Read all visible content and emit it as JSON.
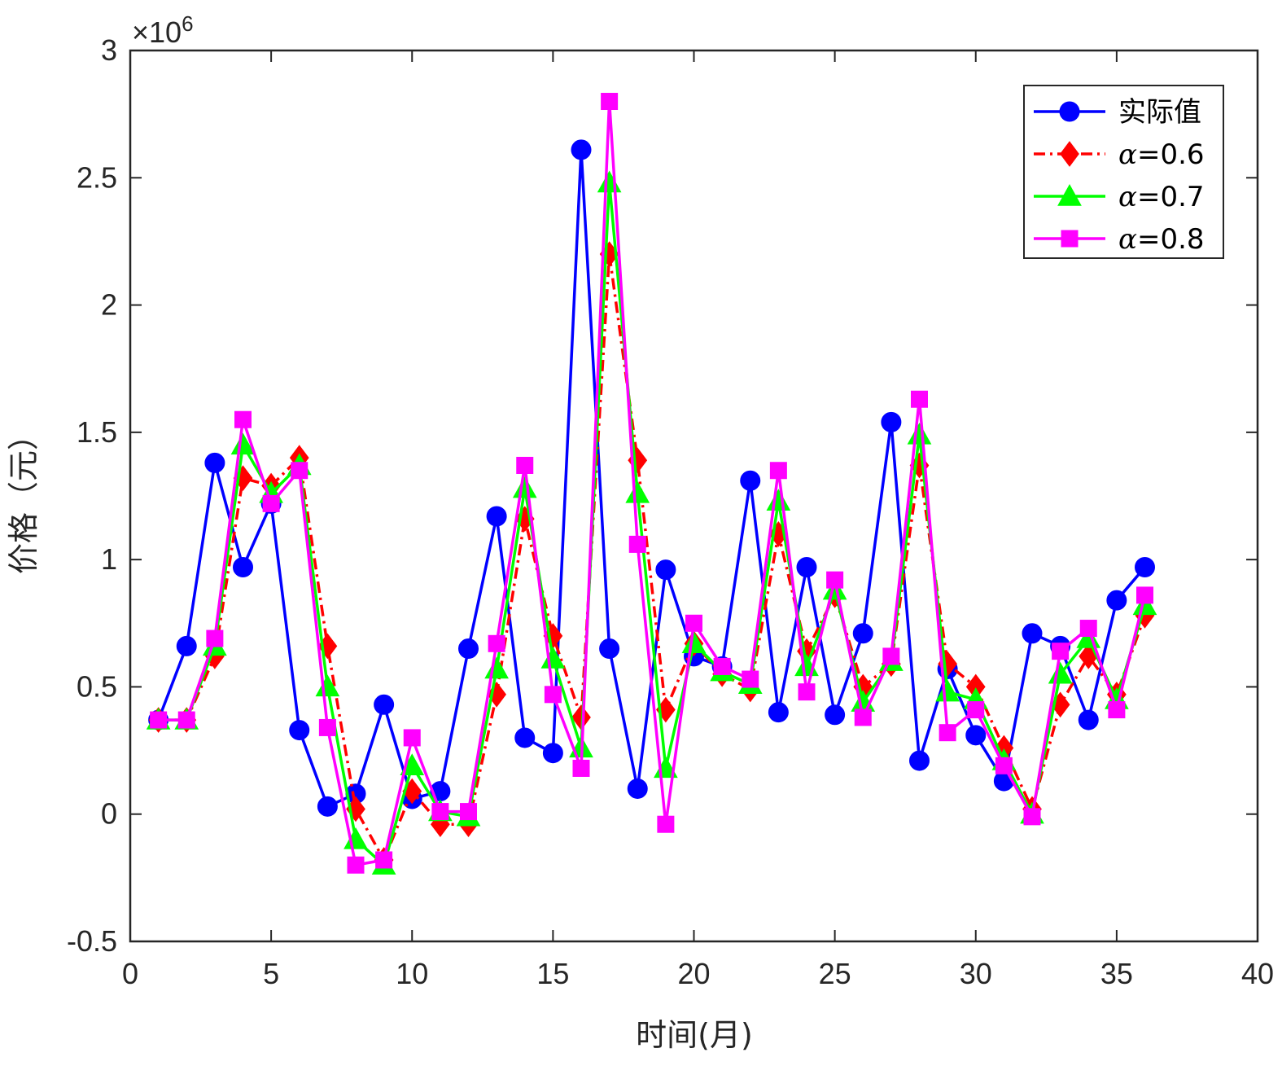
{
  "chart_data": {
    "type": "line",
    "xlabel": "时间(月)",
    "ylabel": "价格（元）",
    "y_exponent": "×10",
    "y_exponent_power": "6",
    "xlim": [
      0,
      40
    ],
    "ylim": [
      -0.5,
      3
    ],
    "x_ticks": [
      0,
      5,
      10,
      15,
      20,
      25,
      30,
      35,
      40
    ],
    "y_ticks": [
      -0.5,
      0,
      0.5,
      1,
      1.5,
      2,
      2.5,
      3
    ],
    "y_tick_labels": [
      "-0.5",
      "0",
      "0.5",
      "1",
      "1.5",
      "2",
      "2.5",
      "3"
    ],
    "x": [
      1,
      2,
      3,
      4,
      5,
      6,
      7,
      8,
      9,
      10,
      11,
      12,
      13,
      14,
      15,
      16,
      17,
      18,
      19,
      20,
      21,
      22,
      23,
      24,
      25,
      26,
      27,
      28,
      29,
      30,
      31,
      32,
      33,
      34,
      35,
      36
    ],
    "grid": false,
    "legend_position": "top-right",
    "series": [
      {
        "name": "实际值",
        "legend_prefix": "",
        "color": "#0000ff",
        "dash": "solid",
        "marker": "circle",
        "values": [
          0.37,
          0.66,
          1.38,
          0.97,
          1.22,
          0.33,
          0.03,
          0.08,
          0.43,
          0.06,
          0.09,
          0.65,
          1.17,
          0.3,
          0.24,
          2.61,
          0.65,
          0.1,
          0.96,
          0.62,
          0.58,
          1.31,
          0.4,
          0.97,
          0.39,
          0.71,
          1.54,
          0.21,
          0.57,
          0.31,
          0.13,
          0.71,
          0.66,
          0.37,
          0.84,
          0.97
        ]
      },
      {
        "name": "=0.6",
        "legend_prefix": "α",
        "color": "#ff0000",
        "dash": "dashdot",
        "marker": "diamond",
        "values": [
          0.37,
          0.37,
          0.62,
          1.32,
          1.29,
          1.4,
          0.66,
          0.02,
          -0.18,
          0.09,
          -0.04,
          -0.04,
          0.47,
          1.16,
          0.7,
          0.38,
          2.2,
          1.39,
          0.41,
          0.67,
          0.55,
          0.49,
          1.1,
          0.64,
          0.86,
          0.5,
          0.59,
          1.37,
          0.59,
          0.5,
          0.26,
          0.02,
          0.43,
          0.62,
          0.47,
          0.78
        ]
      },
      {
        "name": "=0.7",
        "legend_prefix": "α",
        "color": "#00ff00",
        "dash": "solid",
        "marker": "triangle",
        "values": [
          0.37,
          0.37,
          0.66,
          1.45,
          1.26,
          1.37,
          0.5,
          -0.1,
          -0.2,
          0.19,
          0.01,
          -0.01,
          0.57,
          1.28,
          0.61,
          0.26,
          2.48,
          1.26,
          0.18,
          0.67,
          0.56,
          0.51,
          1.23,
          0.58,
          0.88,
          0.44,
          0.6,
          1.49,
          0.48,
          0.45,
          0.21,
          0.0,
          0.55,
          0.69,
          0.45,
          0.82
        ]
      },
      {
        "name": "=0.8",
        "legend_prefix": "α",
        "color": "#ff00ff",
        "dash": "solid",
        "marker": "square",
        "values": [
          0.37,
          0.37,
          0.69,
          1.55,
          1.22,
          1.35,
          0.34,
          -0.2,
          -0.18,
          0.3,
          0.01,
          0.01,
          0.67,
          1.37,
          0.47,
          0.18,
          2.8,
          1.06,
          -0.04,
          0.75,
          0.58,
          0.53,
          1.35,
          0.48,
          0.92,
          0.38,
          0.62,
          1.63,
          0.32,
          0.41,
          0.19,
          -0.01,
          0.64,
          0.73,
          0.41,
          0.86
        ]
      }
    ]
  }
}
